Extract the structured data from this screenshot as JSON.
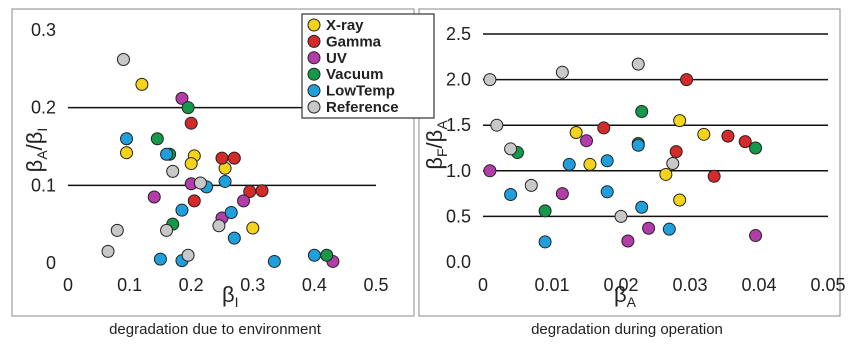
{
  "colors": {
    "frame": "#8a8a8a",
    "grid": "#111111",
    "marker_edge": "#222222"
  },
  "legend": {
    "items": [
      {
        "name": "X-ray",
        "color": "#f5d31a"
      },
      {
        "name": "Gamma",
        "color": "#d42a2a"
      },
      {
        "name": "UV",
        "color": "#b23ca8"
      },
      {
        "name": "Vacuum",
        "color": "#14994a"
      },
      {
        "name": "LowTemp",
        "color": "#1fa0dc"
      },
      {
        "name": "Reference",
        "color": "#c8c8c8"
      }
    ]
  },
  "chart_data": [
    {
      "type": "scatter",
      "caption": "degradation due to environment",
      "ylabel_main": "β",
      "ylabel_sub1": "A",
      "ylabel_sep": "/β",
      "ylabel_sub2": "I",
      "xlabel_main": "β",
      "xlabel_sub": "I",
      "xlim": [
        0,
        0.5
      ],
      "ylim": [
        0,
        0.3
      ],
      "xticks": [
        "0",
        "0.1",
        "0.2",
        "0.3",
        "0.4",
        "0.5"
      ],
      "xtick_values": [
        0,
        0.1,
        0.2,
        0.3,
        0.4,
        0.5
      ],
      "yticks": [
        "0",
        "0.1",
        "0.2",
        "0.3"
      ],
      "ytick_values": [
        0,
        0.1,
        0.2,
        0.3
      ],
      "hlines": [
        0.1,
        0.2
      ],
      "series": [
        {
          "name": "X-ray",
          "x": [
            0.12,
            0.095,
            0.205,
            0.2,
            0.255,
            0.3
          ],
          "y": [
            0.23,
            0.142,
            0.138,
            0.128,
            0.122,
            0.045
          ]
        },
        {
          "name": "Gamma",
          "x": [
            0.2,
            0.25,
            0.27,
            0.295,
            0.315,
            0.205
          ],
          "y": [
            0.18,
            0.135,
            0.135,
            0.092,
            0.093,
            0.08
          ]
        },
        {
          "name": "UV",
          "x": [
            0.185,
            0.2,
            0.14,
            0.25,
            0.285,
            0.43
          ],
          "y": [
            0.212,
            0.102,
            0.085,
            0.058,
            0.08,
            0.002
          ]
        },
        {
          "name": "Vacuum",
          "x": [
            0.195,
            0.145,
            0.165,
            0.17,
            0.42
          ],
          "y": [
            0.2,
            0.16,
            0.14,
            0.05,
            0.01
          ]
        },
        {
          "name": "LowTemp",
          "x": [
            0.095,
            0.16,
            0.255,
            0.225,
            0.185,
            0.265,
            0.27,
            0.15,
            0.185,
            0.335,
            0.4
          ],
          "y": [
            0.16,
            0.14,
            0.105,
            0.098,
            0.068,
            0.065,
            0.032,
            0.005,
            0.003,
            0.002,
            0.01
          ]
        },
        {
          "name": "Reference",
          "x": [
            0.09,
            0.215,
            0.17,
            0.08,
            0.16,
            0.245,
            0.195,
            0.065
          ],
          "y": [
            0.262,
            0.103,
            0.118,
            0.042,
            0.042,
            0.048,
            0.01,
            0.015
          ]
        }
      ]
    },
    {
      "type": "scatter",
      "caption": "degradation during operation",
      "ylabel_main": "β",
      "ylabel_sub1": "F",
      "ylabel_sep": "/β",
      "ylabel_sub2": "A",
      "xlabel_main": "β",
      "xlabel_sub": "A",
      "xlim": [
        0,
        0.05
      ],
      "ylim": [
        0,
        2.5
      ],
      "xticks": [
        "0",
        "0.01",
        "0.02",
        "0.03",
        "0.04",
        "0.05"
      ],
      "xtick_values": [
        0,
        0.01,
        0.02,
        0.03,
        0.04,
        0.05
      ],
      "yticks": [
        "0.0",
        "0.5",
        "1.0",
        "1.5",
        "2.0",
        "2.5"
      ],
      "ytick_values": [
        0,
        0.5,
        1.0,
        1.5,
        2.0,
        2.5
      ],
      "hlines": [
        0.5,
        1.0,
        1.5,
        2.0,
        2.5
      ],
      "series": [
        {
          "name": "X-ray",
          "x": [
            0.0135,
            0.0155,
            0.0285,
            0.032,
            0.0265,
            0.0285
          ],
          "y": [
            1.42,
            1.07,
            1.55,
            1.4,
            0.96,
            0.68
          ]
        },
        {
          "name": "Gamma",
          "x": [
            0.0295,
            0.0175,
            0.028,
            0.0355,
            0.038,
            0.0335
          ],
          "y": [
            2.0,
            1.47,
            1.21,
            1.38,
            1.32,
            0.94
          ]
        },
        {
          "name": "UV",
          "x": [
            0.001,
            0.0115,
            0.015,
            0.021,
            0.024,
            0.0395
          ],
          "y": [
            1.0,
            0.75,
            1.33,
            0.23,
            0.37,
            0.29
          ]
        },
        {
          "name": "Vacuum",
          "x": [
            0.005,
            0.009,
            0.023,
            0.0225,
            0.0395
          ],
          "y": [
            1.2,
            0.56,
            1.65,
            1.3,
            1.25
          ]
        },
        {
          "name": "LowTemp",
          "x": [
            0.004,
            0.009,
            0.0125,
            0.018,
            0.018,
            0.0225,
            0.023,
            0.027
          ],
          "y": [
            0.74,
            0.22,
            1.07,
            1.11,
            0.77,
            1.28,
            0.6,
            0.36
          ]
        },
        {
          "name": "Reference",
          "x": [
            0.001,
            0.0115,
            0.0225,
            0.002,
            0.004,
            0.007,
            0.02,
            0.0275
          ],
          "y": [
            2.0,
            2.08,
            2.17,
            1.5,
            1.24,
            0.84,
            0.5,
            1.08
          ]
        }
      ]
    }
  ]
}
